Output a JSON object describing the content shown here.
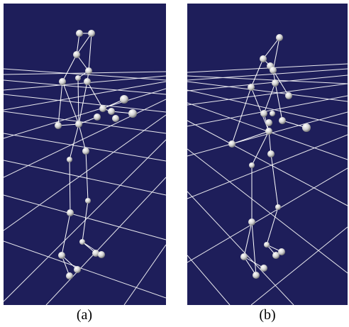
{
  "figure": {
    "panels": [
      {
        "id": "a",
        "caption": "(a)",
        "content": "3d-skeleton-marker-figure"
      },
      {
        "id": "b",
        "caption": "(b)",
        "content": "3d-skeleton-marker-figure"
      }
    ],
    "colors": {
      "panel_background": "#1e1e5a",
      "grid_lines": "#ffffff",
      "skeleton_lines": "#ffffff",
      "marker_highlight": "#ffffff",
      "marker_shadow": "#7a7a7a"
    }
  }
}
